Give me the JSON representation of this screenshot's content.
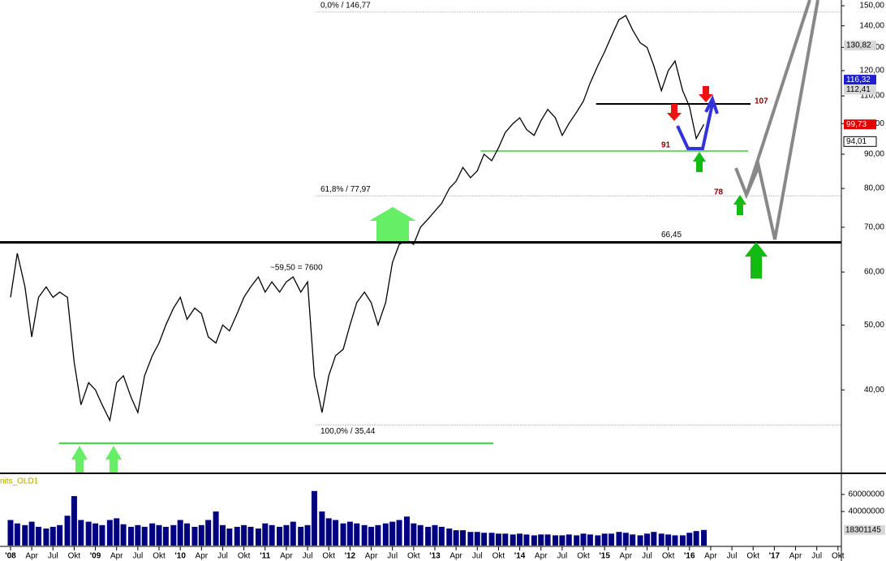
{
  "chart_data": {
    "type": "line",
    "log_scale": true,
    "color": "#000000",
    "x": [
      2008,
      2008.08,
      2008.17,
      2008.25,
      2008.33,
      2008.42,
      2008.5,
      2008.58,
      2008.67,
      2008.75,
      2008.83,
      2008.92,
      2009,
      2009.08,
      2009.17,
      2009.25,
      2009.33,
      2009.42,
      2009.5,
      2009.58,
      2009.67,
      2009.75,
      2009.83,
      2009.92,
      2010,
      2010.08,
      2010.17,
      2010.25,
      2010.33,
      2010.42,
      2010.5,
      2010.58,
      2010.67,
      2010.75,
      2010.83,
      2010.92,
      2011,
      2011.08,
      2011.17,
      2011.25,
      2011.33,
      2011.42,
      2011.5,
      2011.58,
      2011.67,
      2011.75,
      2011.83,
      2011.92,
      2012,
      2012.08,
      2012.17,
      2012.25,
      2012.33,
      2012.42,
      2012.5,
      2012.58,
      2012.67,
      2012.75,
      2012.83,
      2012.92,
      2013,
      2013.08,
      2013.17,
      2013.25,
      2013.33,
      2013.42,
      2013.5,
      2013.58,
      2013.67,
      2013.75,
      2013.83,
      2013.92,
      2014,
      2014.08,
      2014.17,
      2014.25,
      2014.33,
      2014.42,
      2014.5,
      2014.58,
      2014.67,
      2014.75,
      2014.83,
      2014.92,
      2015,
      2015.08,
      2015.17,
      2015.25,
      2015.33,
      2015.42,
      2015.5,
      2015.58,
      2015.67,
      2015.75,
      2015.83,
      2015.92,
      2016,
      2016.08,
      2016.17
    ],
    "values": [
      55,
      64,
      57,
      48,
      55,
      57,
      55,
      56,
      55,
      44,
      38,
      41,
      40,
      38,
      36,
      41,
      42,
      39,
      37,
      42,
      45,
      47,
      50,
      53,
      55,
      51,
      53,
      52,
      48,
      47,
      50,
      49,
      52,
      55,
      57,
      59,
      56,
      58,
      56,
      58,
      59,
      56,
      58,
      42,
      37,
      42,
      45,
      46,
      50,
      54,
      56,
      54,
      50,
      54,
      62,
      66,
      67,
      66,
      70,
      72,
      74,
      76,
      80,
      82,
      86,
      83,
      85,
      90,
      88,
      92,
      97,
      100,
      102,
      98,
      96,
      101,
      105,
      102,
      96,
      100,
      104,
      108,
      115,
      122,
      128,
      135,
      143,
      145,
      138,
      132,
      130,
      122,
      112,
      120,
      124,
      112,
      106,
      95,
      99.73
    ],
    "xlim": [
      2007.876,
      2017.79
    ],
    "ylim": [
      30.1,
      153
    ],
    "yticks": [
      {
        "value": 40,
        "label": "40,00"
      },
      {
        "value": 50,
        "label": "50,00"
      },
      {
        "value": 60,
        "label": "60,00"
      },
      {
        "value": 70,
        "label": "70,00"
      },
      {
        "value": 80,
        "label": "80,00"
      },
      {
        "value": 90,
        "label": "90,00"
      },
      {
        "value": 100,
        "label": "100,00"
      },
      {
        "value": 110,
        "label": "110,00"
      },
      {
        "value": 120,
        "label": "120,00"
      },
      {
        "value": 130,
        "label": "130,00"
      },
      {
        "value": 140,
        "label": "140,00"
      },
      {
        "value": 150,
        "label": "150,00"
      }
    ],
    "xticks": [
      {
        "value": 2008,
        "label": "'08"
      },
      {
        "value": 2008.25,
        "label": "Apr"
      },
      {
        "value": 2008.5,
        "label": "Jul"
      },
      {
        "value": 2008.75,
        "label": "Okt"
      },
      {
        "value": 2009,
        "label": "'09"
      },
      {
        "value": 2009.25,
        "label": "Apr"
      },
      {
        "value": 2009.5,
        "label": "Jul"
      },
      {
        "value": 2009.75,
        "label": "Okt"
      },
      {
        "value": 2010,
        "label": "'10"
      },
      {
        "value": 2010.25,
        "label": "Apr"
      },
      {
        "value": 2010.5,
        "label": "Jul"
      },
      {
        "value": 2010.75,
        "label": "Okt"
      },
      {
        "value": 2011,
        "label": "'11"
      },
      {
        "value": 2011.25,
        "label": "Apr"
      },
      {
        "value": 2011.5,
        "label": "Jul"
      },
      {
        "value": 2011.75,
        "label": "Okt"
      },
      {
        "value": 2012,
        "label": "'12"
      },
      {
        "value": 2012.25,
        "label": "Apr"
      },
      {
        "value": 2012.5,
        "label": "Jul"
      },
      {
        "value": 2012.75,
        "label": "Okt"
      },
      {
        "value": 2013,
        "label": "'13"
      },
      {
        "value": 2013.25,
        "label": "Apr"
      },
      {
        "value": 2013.5,
        "label": "Jul"
      },
      {
        "value": 2013.75,
        "label": "Okt"
      },
      {
        "value": 2014,
        "label": "'14"
      },
      {
        "value": 2014.25,
        "label": "Apr"
      },
      {
        "value": 2014.5,
        "label": "Jul"
      },
      {
        "value": 2014.75,
        "label": "Okt"
      },
      {
        "value": 2015,
        "label": "'15"
      },
      {
        "value": 2015.25,
        "label": "Apr"
      },
      {
        "value": 2015.5,
        "label": "Jul"
      },
      {
        "value": 2015.75,
        "label": "Okt"
      },
      {
        "value": 2016,
        "label": "'16"
      },
      {
        "value": 2016.25,
        "label": "Apr"
      },
      {
        "value": 2016.5,
        "label": "Jul"
      },
      {
        "value": 2016.75,
        "label": "Okt"
      },
      {
        "value": 2017,
        "label": "'17"
      },
      {
        "value": 2017.25,
        "label": "Apr"
      },
      {
        "value": 2017.5,
        "label": "Jul"
      },
      {
        "value": 2017.75,
        "label": "Okt"
      }
    ],
    "levels": [
      {
        "value": 146.77,
        "label": "0,0% / 146,77",
        "color": "#888888",
        "from": 2011.6,
        "to": 2017.79
      },
      {
        "value": 77.97,
        "label": "61,8% / 77,97",
        "color": "#888888",
        "from": 2011.6,
        "to": 2017.79
      },
      {
        "value": 35.44,
        "label": "100,0% / 35,44",
        "color": "#888888",
        "from": 2011.6,
        "to": 2017.79
      },
      {
        "value": 66.45,
        "label": "66,45",
        "color": "#000000",
        "from": 2007.876,
        "to": 2017.79
      },
      {
        "value": 107,
        "label": "107",
        "color": "#000000",
        "from": 2014.9,
        "to": 2016.72
      },
      {
        "value": 91,
        "label": "91",
        "color": "#66dd66",
        "from": 2013.54,
        "to": 2016.69
      },
      {
        "value": 33.3,
        "color": "#33dd33",
        "from": 2008.57,
        "to": 2013.69
      }
    ],
    "annotations": [
      "~59,50 = 7600",
      "78"
    ],
    "price_markers": [
      {
        "value": 130.82,
        "label": "130,82",
        "color": "#d8d8d8"
      },
      {
        "value": 116.32,
        "label": "116,32",
        "color": "#1f1fcf"
      },
      {
        "value": 112.41,
        "label": "112,41",
        "color": "#d8d8d8"
      },
      {
        "value": 99.73,
        "label": "99,73",
        "color": "#e00000"
      },
      {
        "value": 94.01,
        "label": "94,01",
        "color": "#ffffff"
      }
    ],
    "volume": {
      "name": "nits_OLD1",
      "color": "#000080",
      "values": [
        30000000,
        26000000,
        24000000,
        28000000,
        22000000,
        20000000,
        22000000,
        24000000,
        35000000,
        58000000,
        30000000,
        28000000,
        26000000,
        24000000,
        30000000,
        32000000,
        25000000,
        22000000,
        24000000,
        22000000,
        26000000,
        24000000,
        22000000,
        24000000,
        30000000,
        26000000,
        22000000,
        24000000,
        30000000,
        40000000,
        24000000,
        20000000,
        22000000,
        24000000,
        22000000,
        20000000,
        26000000,
        24000000,
        22000000,
        24000000,
        28000000,
        22000000,
        24000000,
        64000000,
        40000000,
        32000000,
        30000000,
        26000000,
        28000000,
        26000000,
        24000000,
        22000000,
        24000000,
        26000000,
        28000000,
        30000000,
        34000000,
        26000000,
        24000000,
        22000000,
        24000000,
        22000000,
        20000000,
        18000000,
        18000000,
        16000000,
        16000000,
        15000000,
        15000000,
        14000000,
        14000000,
        13000000,
        14000000,
        13000000,
        12000000,
        13000000,
        13000000,
        12000000,
        12000000,
        13000000,
        12000000,
        14000000,
        13000000,
        12000000,
        14000000,
        14000000,
        16000000,
        15000000,
        13000000,
        12000000,
        14000000,
        16000000,
        14000000,
        13000000,
        12000000,
        12000000,
        15000000,
        17000000,
        18301145
      ],
      "ylim": [
        0,
        80000000
      ],
      "yticks": [
        60000000,
        40000000
      ],
      "last_label": "18301145"
    }
  }
}
